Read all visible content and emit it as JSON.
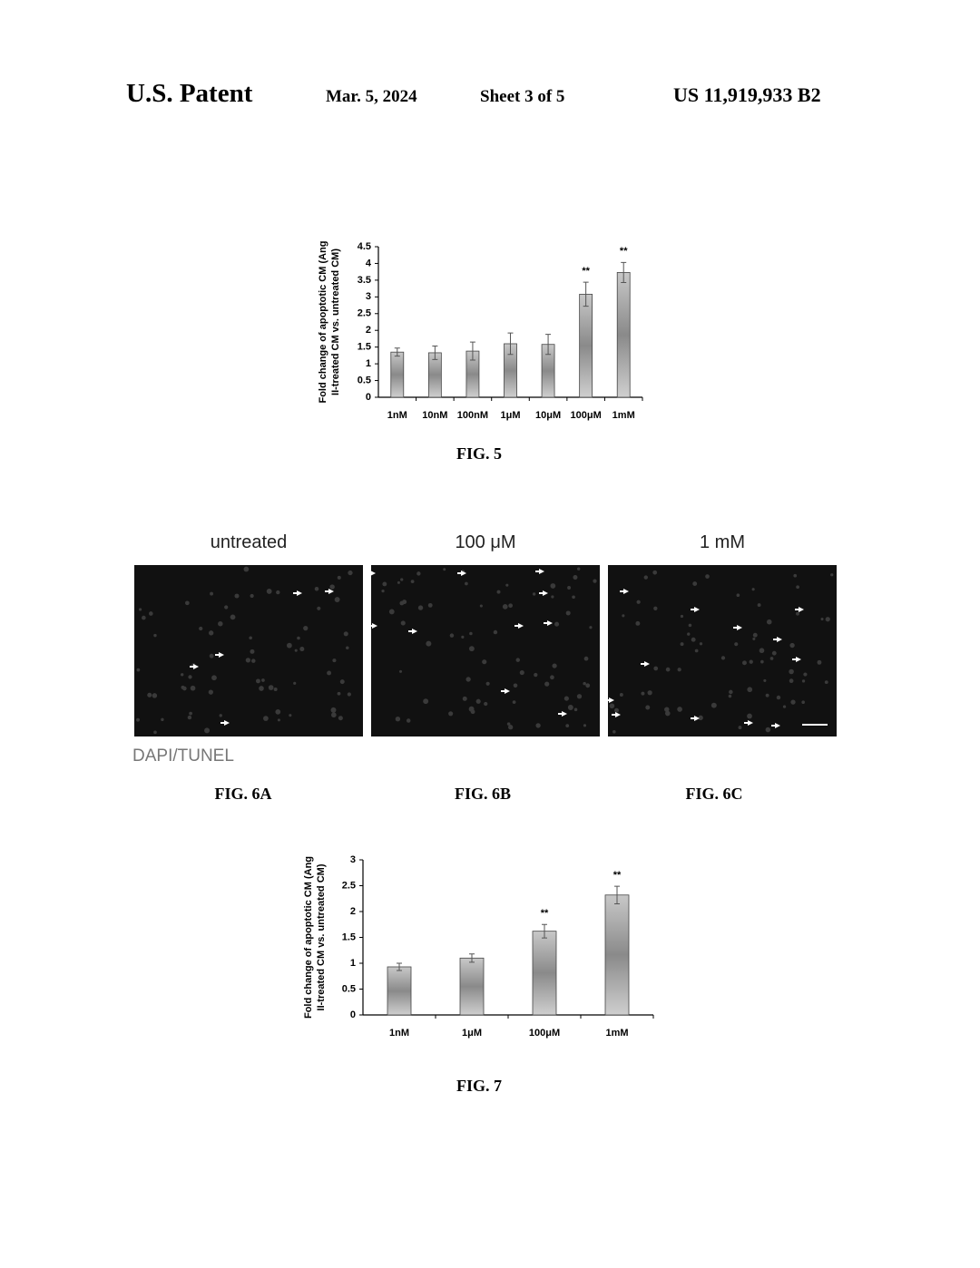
{
  "header": {
    "left": "U.S. Patent",
    "date": "Mar. 5, 2024",
    "sheet": "Sheet 3 of 5",
    "number": "US 11,919,933 B2"
  },
  "chart_data": [
    {
      "type": "bar",
      "caption": "FIG. 5",
      "ylabel": [
        "Fold change of apoptotic CM (Ang",
        "II-treated CM vs. untreated CM)"
      ],
      "categories": [
        "1nM",
        "10nM",
        "100nM",
        "1μM",
        "10μM",
        "100μM",
        "1mM"
      ],
      "values": [
        1.35,
        1.33,
        1.38,
        1.6,
        1.58,
        3.08,
        3.73
      ],
      "errors": [
        0.12,
        0.2,
        0.27,
        0.32,
        0.3,
        0.36,
        0.3
      ],
      "significance": [
        null,
        null,
        null,
        null,
        null,
        "**",
        "**"
      ],
      "ylim": [
        0,
        4.5
      ],
      "yticks": [
        0,
        0.5,
        1,
        1.5,
        2,
        2.5,
        3,
        3.5,
        4,
        4.5
      ],
      "color": "#9a9a9a"
    },
    {
      "type": "bar",
      "caption": "FIG. 7",
      "ylabel": [
        "Fold change of apoptotic CM (Ang",
        "II-treated CM vs. untreated CM)"
      ],
      "categories": [
        "1nM",
        "1μM",
        "100μM",
        "1mM"
      ],
      "values": [
        0.93,
        1.1,
        1.62,
        2.32
      ],
      "errors": [
        0.07,
        0.08,
        0.13,
        0.17
      ],
      "significance": [
        null,
        null,
        "**",
        "**"
      ],
      "ylim": [
        0,
        3
      ],
      "yticks": [
        0,
        0.5,
        1,
        1.5,
        2,
        2.5,
        3
      ],
      "color": "#9a9a9a"
    }
  ],
  "figure6": {
    "panels": [
      {
        "title": "untreated",
        "caption": "FIG. 6A"
      },
      {
        "title": "100 μM",
        "caption": "FIG. 6B"
      },
      {
        "title": "1 mM",
        "caption": "FIG. 6C"
      }
    ],
    "stain": "DAPI/TUNEL"
  }
}
